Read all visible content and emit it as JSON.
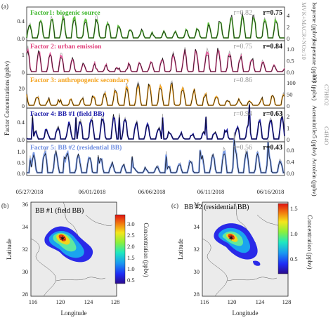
{
  "panel_labels": [
    "(a)",
    "(b)",
    "(c)"
  ],
  "time_series": {
    "left_axis_label": "Factor Concentrations (ppbv)",
    "x_ticks": [
      "05/27/2018",
      "06/01/2018",
      "06/06/2018",
      "06/11/2018",
      "06/16/2018"
    ],
    "factors": [
      {
        "title": "Factor1: biogenic source",
        "title_color": "#3fb62d",
        "line_color": "#5cc23a",
        "left_ticks": [
          "0.4",
          "0.0"
        ],
        "right_ticks": [
          "4",
          "2",
          "0"
        ],
        "right_label": "Isoprene (ppbv)",
        "r_gray": "r=0.82",
        "r_black": "r=0.75"
      },
      {
        "title": "Factor 2: urban emission",
        "title_color": "#e0407a",
        "line_color": "#e8569a",
        "left_ticks": [
          "1",
          "0"
        ],
        "right_ticks": [
          "1.0",
          "0.5",
          "0.0"
        ],
        "right_label": "Isopentane (ppbv)",
        "r_gray": "r=0.75",
        "r_black": "r=0.84"
      },
      {
        "title": "Factor 3:    anthropogenic secondary",
        "title_color": "#f4a21c",
        "line_color": "#f5a623",
        "left_ticks": [
          "20",
          "0"
        ],
        "right_ticks": [
          "100",
          "50",
          "0"
        ],
        "right_label": "O3 (ppbv)",
        "r_gray": "r=0.86",
        "r_black": ""
      },
      {
        "title": "Factor 4: BB #1 (field BB)",
        "title_color": "#1a1aa8",
        "line_color": "#1a1ab0",
        "left_ticks": [
          "0.4",
          "0.0"
        ],
        "right_ticks": [
          "2",
          "1",
          "0"
        ],
        "right_label": "Acetonitrile/5 (ppbv)",
        "r_gray": "r=0.94",
        "r_black": "r=0.63"
      },
      {
        "title": "Factor 5: BB #2 (residential BB)",
        "title_color": "#6f8ee0",
        "line_color": "#7c9ce6",
        "left_ticks": [
          "1.0",
          "0.5",
          "0.0"
        ],
        "right_ticks": [
          "0.8",
          "0.4",
          "0.0"
        ],
        "right_label": "Acrolein (ppbv)",
        "r_gray": "r=0.56",
        "r_black": "r=0.43"
      }
    ],
    "right_gray_labels": [
      "MVK+MACR+NOx/10",
      "C7H8O2",
      "C4H4O"
    ]
  },
  "maps": [
    {
      "title": "BB #1 (field BB)",
      "colorbar_ticks": [
        "3.0",
        "2.5",
        "2.0",
        "1.5",
        "1.0",
        "0.5"
      ],
      "colorbar_label": "Concentration (ppbv)",
      "x_ticks": [
        "116",
        "120",
        "124",
        "128"
      ],
      "y_ticks": [
        "36",
        "34",
        "32",
        "30",
        "28"
      ],
      "x_label": "Longitude",
      "y_label": "Latitude"
    },
    {
      "title": "BB #2 (residential BB)",
      "colorbar_ticks": [
        "1.5",
        "1.0",
        "0.5"
      ],
      "colorbar_label": "Concentration (ppbv)",
      "x_ticks": [
        "116",
        "120",
        "124",
        "128"
      ],
      "y_ticks": [
        "36",
        "34",
        "32",
        "30",
        "28"
      ],
      "x_label": "Longitude",
      "y_label": "Latitude"
    }
  ]
}
